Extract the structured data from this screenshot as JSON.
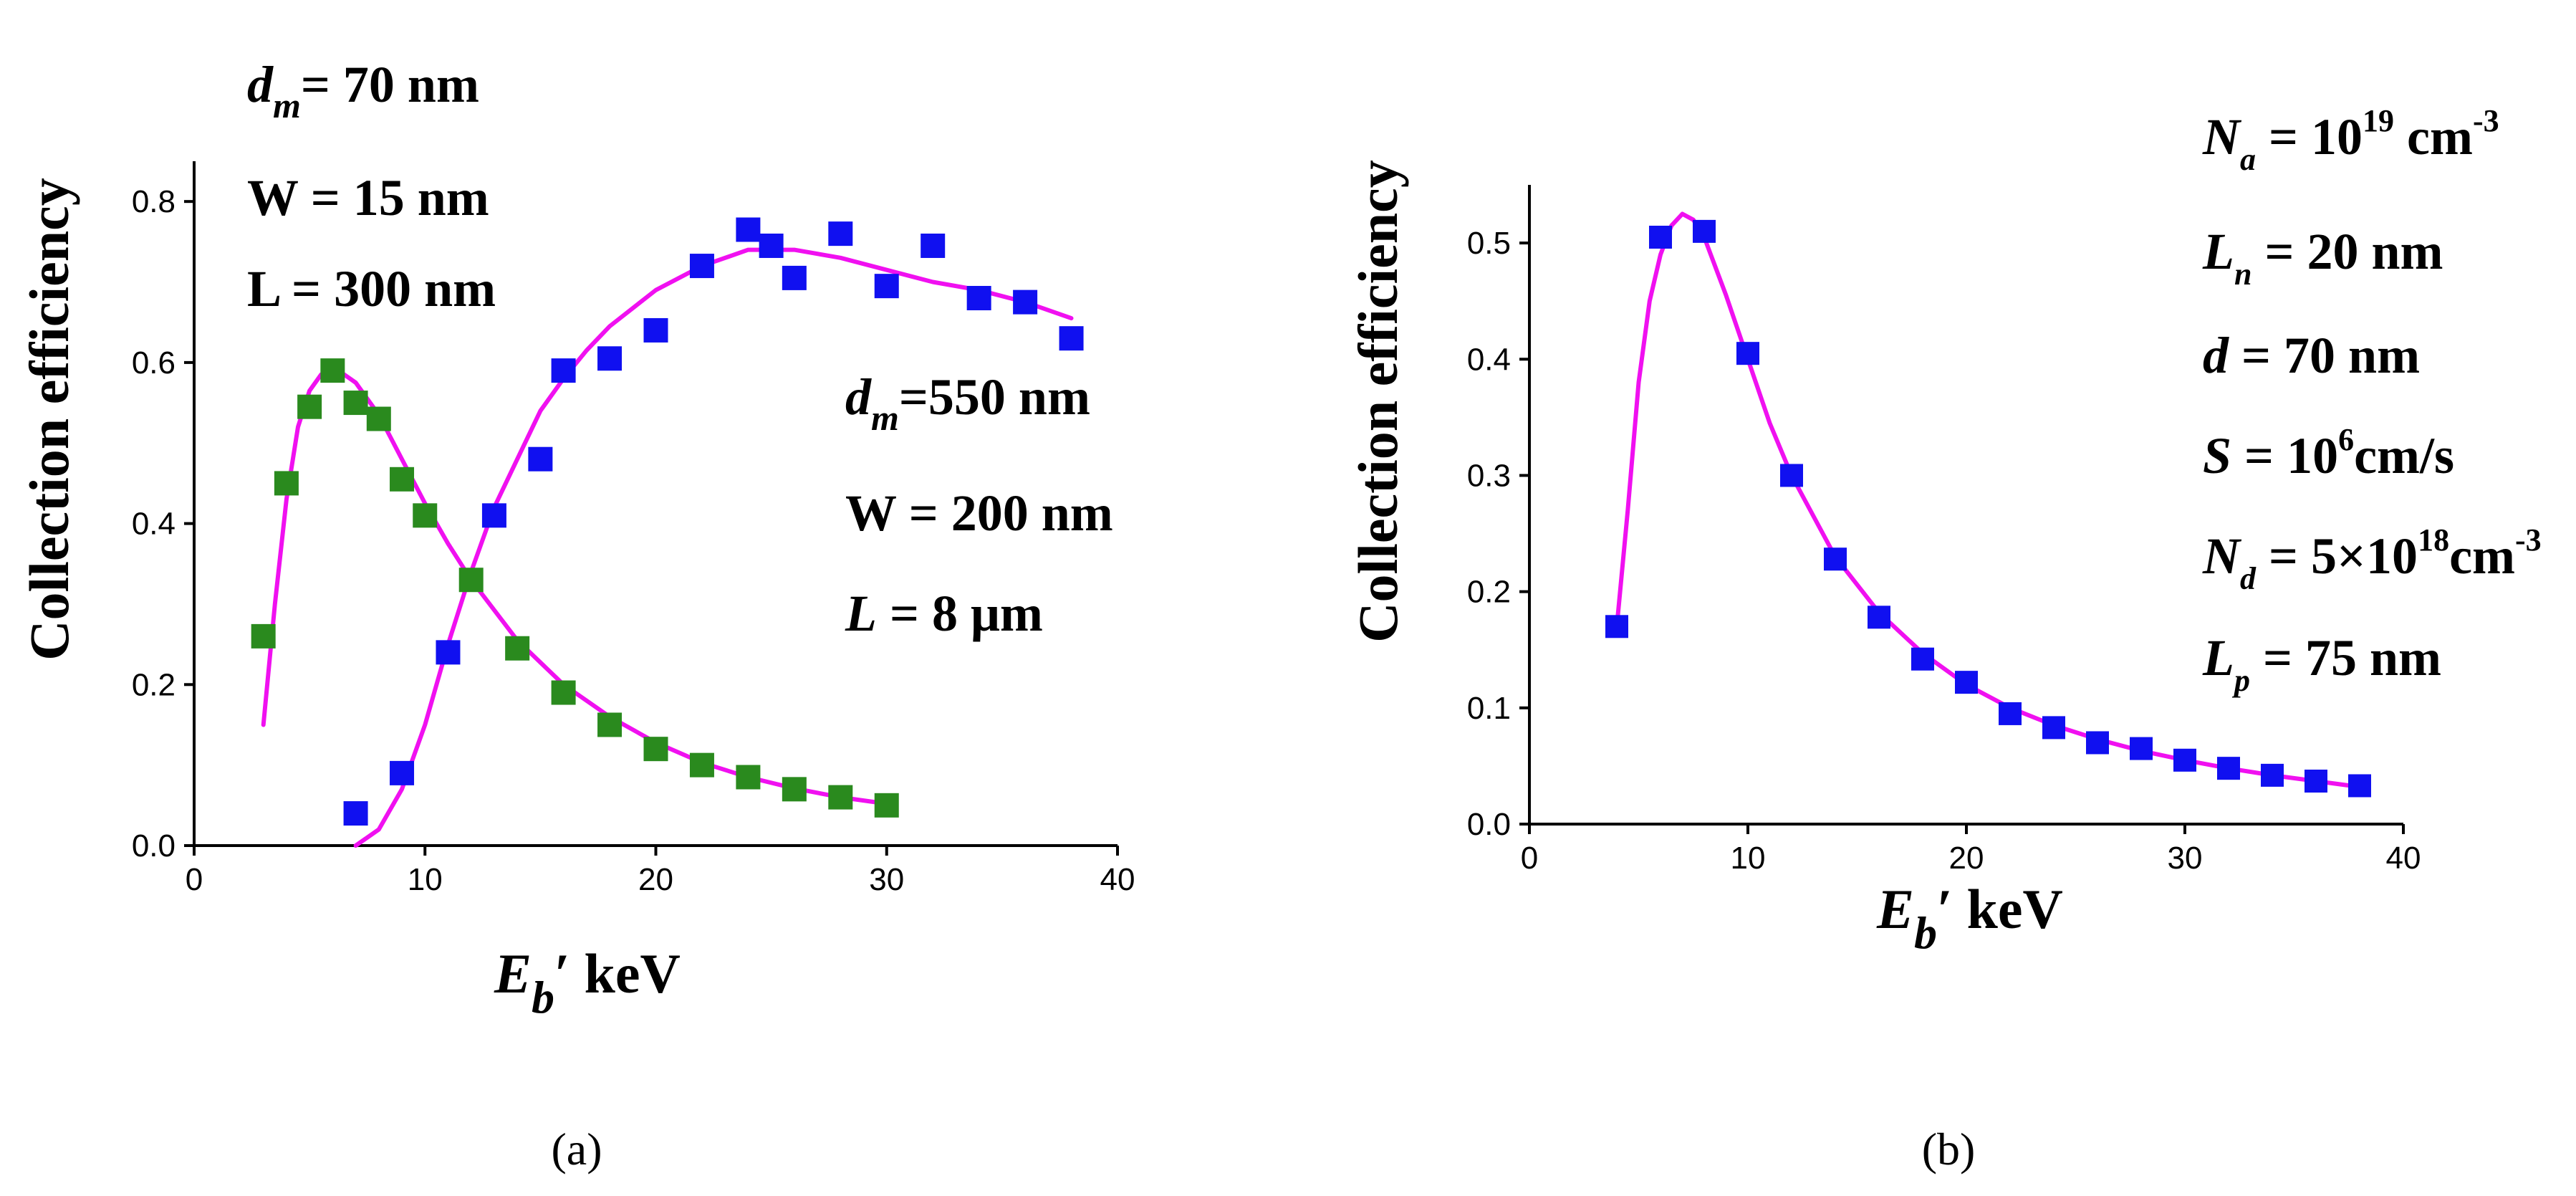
{
  "chart_data": [
    {
      "id": "a",
      "type": "scatter",
      "caption": "(a)",
      "ylabel": "Collection efficiency",
      "xlabel": {
        "symbol": "E",
        "sub": "b",
        "suffix": "′ keV"
      },
      "xlim": [
        0,
        40
      ],
      "ylim": [
        0,
        0.85
      ],
      "xticks": [
        0,
        10,
        20,
        30,
        40
      ],
      "yticks": [
        0.0,
        0.2,
        0.4,
        0.6,
        0.8
      ],
      "grid": false,
      "colors": {
        "marker_green": "#2a8a1e",
        "marker_blue": "#1010f0",
        "fit": "#f010f0"
      },
      "series": [
        {
          "kind": "markers",
          "color_key": "marker_green",
          "x": [
            3,
            4,
            5,
            6,
            7,
            8,
            9,
            10,
            12,
            14,
            16,
            18,
            20,
            22,
            24,
            26,
            28,
            30
          ],
          "y": [
            0.26,
            0.45,
            0.545,
            0.59,
            0.55,
            0.53,
            0.455,
            0.41,
            0.33,
            0.245,
            0.19,
            0.15,
            0.12,
            0.1,
            0.085,
            0.07,
            0.06,
            0.05
          ]
        },
        {
          "kind": "markers",
          "color_key": "marker_blue",
          "x": [
            7,
            9,
            11,
            13,
            15,
            16,
            18,
            20,
            22,
            24,
            25,
            26,
            28,
            30,
            32,
            34,
            36,
            38
          ],
          "y": [
            0.04,
            0.09,
            0.24,
            0.41,
            0.48,
            0.59,
            0.605,
            0.64,
            0.72,
            0.765,
            0.745,
            0.705,
            0.76,
            0.695,
            0.745,
            0.68,
            0.675,
            0.63
          ]
        },
        {
          "kind": "line",
          "color_key": "fit",
          "x": [
            3,
            3.5,
            4,
            4.5,
            5,
            5.5,
            6,
            6.5,
            7,
            8,
            9,
            10,
            11,
            12,
            14,
            16,
            18,
            20,
            22,
            24,
            26,
            28,
            30
          ],
          "y": [
            0.15,
            0.3,
            0.43,
            0.52,
            0.565,
            0.585,
            0.59,
            0.585,
            0.575,
            0.535,
            0.48,
            0.425,
            0.375,
            0.33,
            0.255,
            0.2,
            0.16,
            0.128,
            0.103,
            0.085,
            0.071,
            0.06,
            0.052
          ]
        },
        {
          "kind": "line",
          "color_key": "fit",
          "x": [
            7,
            8,
            9,
            10,
            11,
            12,
            13,
            14,
            15,
            16,
            17,
            18,
            20,
            22,
            24,
            26,
            28,
            30,
            32,
            34,
            36,
            38
          ],
          "y": [
            0.0,
            0.02,
            0.07,
            0.15,
            0.25,
            0.34,
            0.42,
            0.48,
            0.54,
            0.58,
            0.615,
            0.645,
            0.69,
            0.72,
            0.74,
            0.74,
            0.73,
            0.715,
            0.7,
            0.69,
            0.675,
            0.655
          ]
        }
      ],
      "annotations": [
        {
          "symbol": "d",
          "sub": "m",
          "text": "= 70 nm"
        },
        {
          "text": "W = 15 nm"
        },
        {
          "text": "L =  300 nm"
        },
        {
          "symbol": "d",
          "sub": "m",
          "text": "=550 nm"
        },
        {
          "text": "W = 200 nm"
        },
        {
          "symbol": "L",
          "text": " = 8 μm"
        }
      ]
    },
    {
      "id": "b",
      "type": "scatter",
      "caption": "(b)",
      "ylabel": "Collection efficiency",
      "xlabel": {
        "symbol": "E",
        "sub": "b",
        "suffix": "′ keV"
      },
      "xlim": [
        0,
        40
      ],
      "ylim": [
        0,
        0.55
      ],
      "xticks": [
        0,
        10,
        20,
        30,
        40
      ],
      "yticks": [
        0.0,
        0.1,
        0.2,
        0.3,
        0.4,
        0.5
      ],
      "grid": false,
      "colors": {
        "marker_blue": "#1010f0",
        "fit": "#f010f0"
      },
      "series": [
        {
          "kind": "markers",
          "color_key": "marker_blue",
          "x": [
            4,
            6,
            8,
            10,
            12,
            14,
            16,
            18,
            20,
            22,
            24,
            26,
            28,
            30,
            32,
            34,
            36,
            38
          ],
          "y": [
            0.17,
            0.505,
            0.51,
            0.405,
            0.3,
            0.228,
            0.178,
            0.142,
            0.122,
            0.095,
            0.083,
            0.07,
            0.065,
            0.055,
            0.048,
            0.042,
            0.037,
            0.033
          ]
        },
        {
          "kind": "line",
          "color_key": "fit",
          "x": [
            4,
            4.5,
            5,
            5.5,
            6,
            6.5,
            7,
            7.5,
            8,
            9,
            10,
            11,
            12,
            14,
            16,
            18,
            20,
            22,
            24,
            26,
            28,
            30,
            32,
            34,
            36,
            38
          ],
          "y": [
            0.17,
            0.27,
            0.38,
            0.45,
            0.49,
            0.515,
            0.525,
            0.52,
            0.505,
            0.455,
            0.4,
            0.345,
            0.3,
            0.23,
            0.182,
            0.147,
            0.12,
            0.1,
            0.085,
            0.073,
            0.063,
            0.055,
            0.048,
            0.042,
            0.037,
            0.032
          ]
        }
      ],
      "annotations": [
        {
          "symbol": "N",
          "sub": "a",
          "text": " = 10",
          "sup": "19",
          "tail": " cm",
          "sup2": "-3"
        },
        {
          "symbol": "L",
          "sub": "n",
          "text": " = 20 nm"
        },
        {
          "symbol": "d",
          "text": " = 70 nm"
        },
        {
          "symbol": "S",
          "text": " = 10",
          "sup": "6",
          "tail": "cm/s"
        },
        {
          "symbol": "N",
          "sub": "d",
          "text": " = 5×10",
          "sup": "18",
          "tail": "cm",
          "sup2": "-3"
        },
        {
          "symbol": "L",
          "sub": "p",
          "text": " = 75 nm"
        }
      ]
    }
  ]
}
